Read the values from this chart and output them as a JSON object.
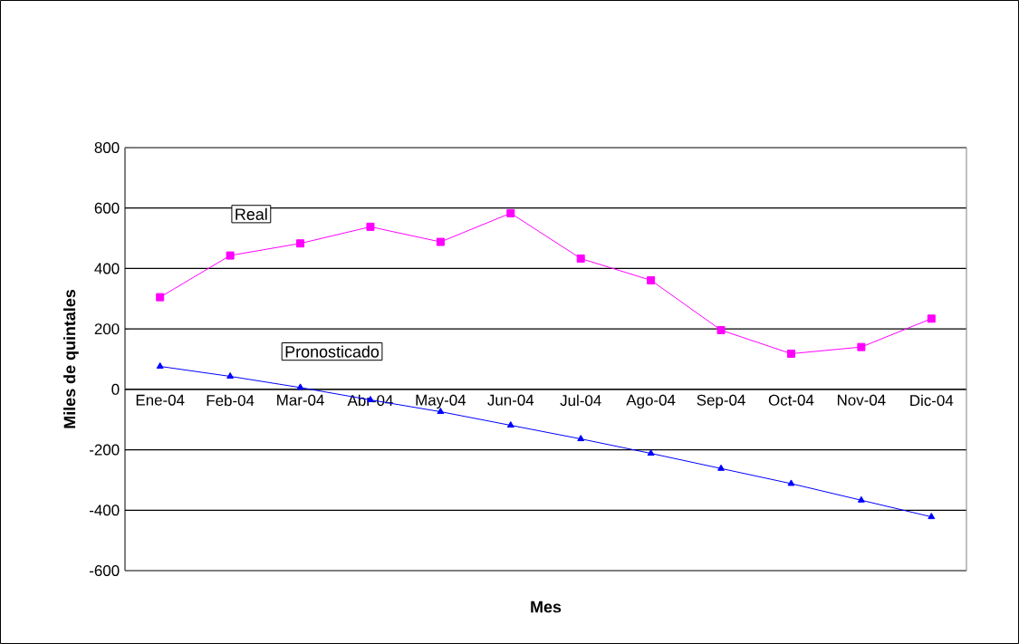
{
  "chart_data": {
    "type": "line",
    "xlabel": "Mes",
    "ylabel": "Miles de quintales",
    "categories": [
      "Ene-04",
      "Feb-04",
      "Mar-04",
      "Abr-04",
      "May-04",
      "Jun-04",
      "Jul-04",
      "Ago-04",
      "Sep-04",
      "Oct-04",
      "Nov-04",
      "Dic-04"
    ],
    "series": [
      {
        "name": "Real",
        "color": "#ff00ff",
        "marker": "square",
        "values": [
          305,
          443,
          483,
          538,
          488,
          583,
          433,
          361,
          196,
          118,
          140,
          234
        ]
      },
      {
        "name": "Pronosticado",
        "color": "#0000ff",
        "marker": "triangle",
        "values": [
          76,
          43,
          6,
          -35,
          -74,
          -119,
          -164,
          -212,
          -262,
          -312,
          -367,
          -422
        ]
      }
    ],
    "ylim": [
      -600,
      800
    ],
    "yticks": [
      -600,
      -400,
      -200,
      0,
      200,
      400,
      600,
      800
    ],
    "grid": "y"
  }
}
